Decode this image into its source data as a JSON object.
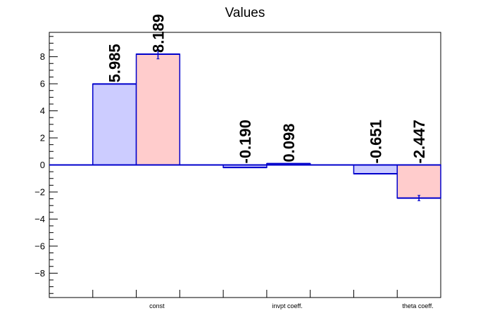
{
  "chart_data": {
    "type": "bar",
    "title": "Values",
    "xlabel": "",
    "ylabel": "",
    "categories": [
      "const",
      "invpt coeff.",
      "theta coeff."
    ],
    "series": [
      {
        "values": [
          5.985,
          -0.19,
          -0.651
        ],
        "labels": [
          "5.985",
          "-0.190",
          "-0.651"
        ],
        "errors": [
          0,
          0,
          0
        ],
        "fill": "#ccccff"
      },
      {
        "values": [
          8.189,
          0.098,
          -2.447
        ],
        "labels": [
          "8.189",
          "0.098",
          "-2.447"
        ],
        "errors": [
          0.35,
          0.02,
          0.2
        ],
        "fill": "#ffcccc"
      }
    ],
    "ylim": [
      -9.8,
      9.8
    ],
    "yticks": [
      -8,
      -6,
      -4,
      -2,
      0,
      2,
      4,
      6,
      8
    ],
    "ytick_labels": [
      "−8",
      "−6",
      "−4",
      "−2",
      "0",
      "2",
      "4",
      "6",
      "8"
    ],
    "minor_step": 0.5,
    "grid": false,
    "colors": {
      "outline": "#0000cc",
      "axis": "#000000"
    }
  }
}
